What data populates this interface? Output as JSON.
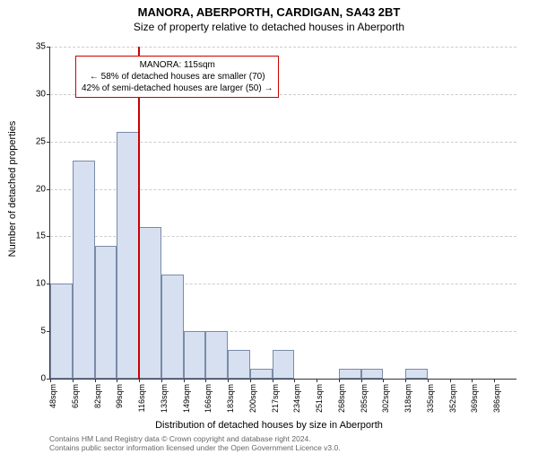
{
  "title_main": "MANORA, ABERPORTH, CARDIGAN, SA43 2BT",
  "title_sub": "Size of property relative to detached houses in Aberporth",
  "y_axis_label": "Number of detached properties",
  "x_axis_label": "Distribution of detached houses by size in Aberporth",
  "footer_line1": "Contains HM Land Registry data © Crown copyright and database right 2024.",
  "footer_line2": "Contains public sector information licensed under the Open Government Licence v3.0.",
  "annotation_line1": "MANORA: 115sqm",
  "annotation_line2": "← 58% of detached houses are smaller (70)",
  "annotation_line3": "42% of semi-detached houses are larger (50) →",
  "chart": {
    "type": "histogram",
    "ylim": [
      0,
      35
    ],
    "ytick_step": 5,
    "bar_color": "#d6e0f0",
    "bar_border": "#7a8ba8",
    "grid_color": "#cccccc",
    "ref_line_x": 115,
    "ref_line_color": "#cc0000",
    "x_start": 48,
    "x_step": 17,
    "x_categories": [
      "48sqm",
      "65sqm",
      "82sqm",
      "99sqm",
      "116sqm",
      "133sqm",
      "149sqm",
      "166sqm",
      "183sqm",
      "200sqm",
      "217sqm",
      "234sqm",
      "251sqm",
      "268sqm",
      "285sqm",
      "302sqm",
      "318sqm",
      "335sqm",
      "352sqm",
      "369sqm",
      "386sqm"
    ],
    "values": [
      10,
      23,
      14,
      26,
      16,
      11,
      5,
      5,
      3,
      1,
      3,
      0,
      0,
      1,
      1,
      0,
      1,
      0,
      0,
      0
    ]
  }
}
